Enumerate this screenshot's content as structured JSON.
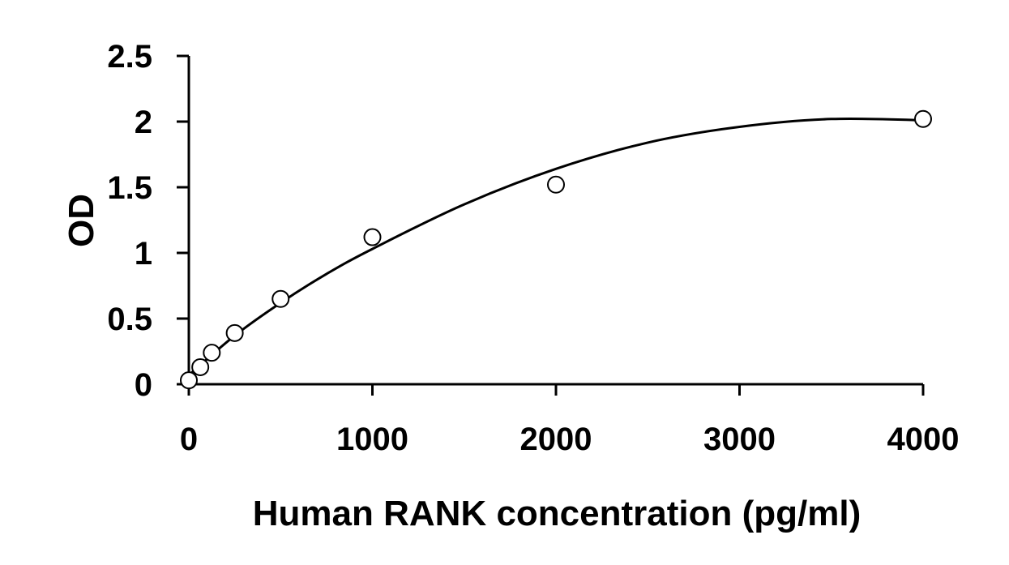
{
  "chart_data": {
    "type": "scatter",
    "title": "",
    "xlabel": "Human RANK concentration (pg/ml)",
    "ylabel": "OD",
    "xlim": [
      0,
      4000
    ],
    "ylim": [
      0,
      2.5
    ],
    "x_ticks": [
      0,
      1000,
      2000,
      3000,
      4000
    ],
    "x_tick_labels": [
      "0",
      "1000",
      "2000",
      "3000",
      "4000"
    ],
    "y_ticks": [
      0,
      0.5,
      1,
      1.5,
      2,
      2.5
    ],
    "y_tick_labels": [
      "0",
      "0.5",
      "1",
      "1.5",
      "2",
      "2.5"
    ],
    "grid": false,
    "legend": "none",
    "series": [
      {
        "kind": "markers",
        "marker": "open-circle",
        "x": [
          0,
          62.5,
          125,
          250,
          500,
          1000,
          2000,
          4000
        ],
        "y": [
          0.03,
          0.13,
          0.24,
          0.39,
          0.65,
          1.12,
          1.52,
          2.02
        ]
      },
      {
        "kind": "fitted-curve",
        "x": [
          0,
          250,
          500,
          750,
          1000,
          1500,
          2000,
          2500,
          3000,
          3500,
          4000
        ],
        "y": [
          0.07,
          0.37,
          0.62,
          0.84,
          1.03,
          1.37,
          1.64,
          1.84,
          1.96,
          2.02,
          2.01
        ]
      }
    ],
    "colors": {
      "axis": "#000000",
      "marker_stroke": "#000000",
      "marker_fill": "#ffffff",
      "curve": "#000000"
    }
  }
}
